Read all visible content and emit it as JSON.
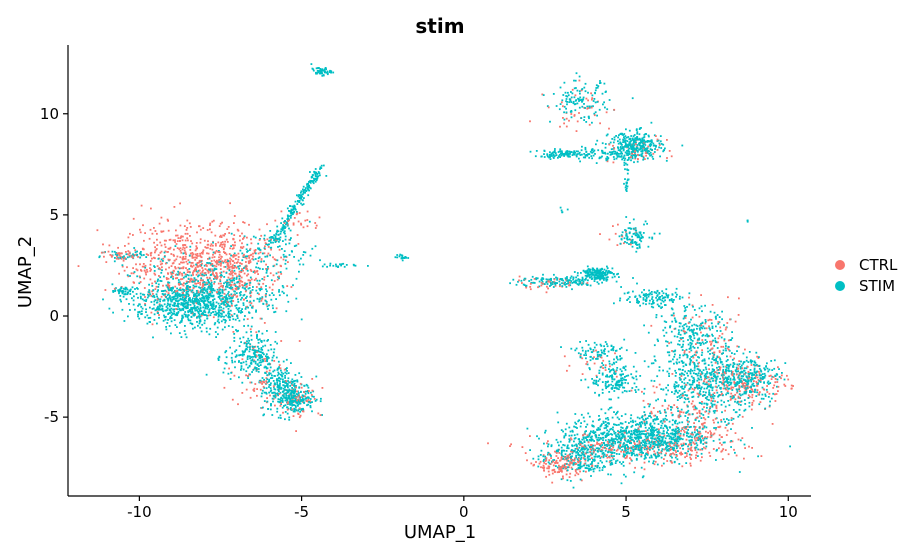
{
  "chart_data": {
    "type": "scatter",
    "title": "stim",
    "xlabel": "UMAP_1",
    "ylabel": "UMAP_2",
    "xlim": [
      -12.2,
      10.7
    ],
    "ylim": [
      -8.9,
      13.4
    ],
    "xticks": [
      -10,
      -5,
      0,
      5,
      10
    ],
    "yticks": [
      -5,
      0,
      5,
      10
    ],
    "xtick_labels": [
      "-10",
      "-5",
      "0",
      "5",
      "10"
    ],
    "ytick_labels": [
      "-5",
      "0",
      "5",
      "10"
    ],
    "legend": {
      "position": "right",
      "entries": [
        {
          "name": "CTRL",
          "color": "#F8766D"
        },
        {
          "name": "STIM",
          "color": "#00BFC4"
        }
      ]
    },
    "series": [
      {
        "name": "CTRL",
        "color": "#F8766D",
        "clusters": [
          {
            "center": [
              -8.3,
              2.6
            ],
            "sd": [
              1.1,
              1.0
            ],
            "n": 650
          },
          {
            "center": [
              -6.9,
              2.2
            ],
            "sd": [
              0.6,
              0.9
            ],
            "n": 180
          },
          {
            "center": [
              -10.4,
              3.0
            ],
            "sd": [
              0.4,
              0.15
            ],
            "n": 40
          },
          {
            "center": [
              -5.2,
              -4.0
            ],
            "sd": [
              0.4,
              0.5
            ],
            "n": 70
          },
          {
            "center": [
              -6.3,
              -2.8
            ],
            "sd": [
              0.5,
              0.9
            ],
            "n": 60
          },
          {
            "center": [
              -5.0,
              4.7
            ],
            "sd": [
              0.3,
              0.3
            ],
            "n": 25
          },
          {
            "center": [
              3.0,
              -7.4
            ],
            "sd": [
              0.35,
              0.3
            ],
            "n": 130
          },
          {
            "center": [
              5.5,
              -6.6
            ],
            "sd": [
              1.6,
              0.4
            ],
            "n": 260
          },
          {
            "center": [
              7.2,
              -5.6
            ],
            "sd": [
              0.6,
              0.7
            ],
            "n": 90
          },
          {
            "center": [
              8.8,
              -3.3
            ],
            "sd": [
              0.6,
              0.5
            ],
            "n": 150
          },
          {
            "center": [
              7.6,
              -1.8
            ],
            "sd": [
              0.6,
              1.1
            ],
            "n": 110
          },
          {
            "center": [
              3.6,
              10.2
            ],
            "sd": [
              0.5,
              0.6
            ],
            "n": 40
          },
          {
            "center": [
              5.3,
              8.2
            ],
            "sd": [
              0.5,
              0.3
            ],
            "n": 40
          },
          {
            "center": [
              2.5,
              1.6
            ],
            "sd": [
              0.7,
              0.15
            ],
            "n": 35
          },
          {
            "center": [
              4.9,
              4.0
            ],
            "sd": [
              0.3,
              0.3
            ],
            "n": 15
          },
          {
            "center": [
              4.2,
              -2.2
            ],
            "sd": [
              0.4,
              0.4
            ],
            "n": 25
          },
          {
            "center": [
              6.8,
              -4.4
            ],
            "sd": [
              1.0,
              0.8
            ],
            "n": 80
          }
        ]
      },
      {
        "name": "STIM",
        "color": "#00BFC4",
        "clusters": [
          {
            "center": [
              -8.4,
              0.6
            ],
            "sd": [
              0.9,
              0.6
            ],
            "n": 700
          },
          {
            "center": [
              -7.6,
              1.4
            ],
            "sd": [
              1.1,
              0.9
            ],
            "n": 420
          },
          {
            "center": [
              -10.5,
              1.2
            ],
            "sd": [
              0.2,
              0.1
            ],
            "n": 40
          },
          {
            "center": [
              -10.4,
              3.0
            ],
            "sd": [
              0.4,
              0.15
            ],
            "n": 40
          },
          {
            "center": [
              -6.6,
              -2.0
            ],
            "sd": [
              0.4,
              0.6
            ],
            "n": 180
          },
          {
            "center": [
              -5.5,
              -3.6
            ],
            "sd": [
              0.4,
              0.6
            ],
            "n": 220
          },
          {
            "center": [
              -5.2,
              -4.2
            ],
            "sd": [
              0.3,
              0.3
            ],
            "n": 120
          },
          {
            "center": [
              -5.7,
              3.3
            ],
            "sd": [
              0.6,
              0.5
            ],
            "n": 80
          },
          {
            "center": [
              -4.4,
              12.1
            ],
            "sd": [
              0.15,
              0.1
            ],
            "n": 50
          },
          {
            "center": [
              -1.9,
              2.9
            ],
            "sd": [
              0.1,
              0.06
            ],
            "n": 20
          },
          {
            "center": [
              -3.8,
              2.5
            ],
            "sd": [
              0.3,
              0.05
            ],
            "n": 20
          },
          {
            "center": [
              3.5,
              -7.0
            ],
            "sd": [
              0.6,
              0.5
            ],
            "n": 220
          },
          {
            "center": [
              4.9,
              -6.1
            ],
            "sd": [
              1.0,
              0.6
            ],
            "n": 600
          },
          {
            "center": [
              6.2,
              -5.9
            ],
            "sd": [
              0.9,
              0.6
            ],
            "n": 400
          },
          {
            "center": [
              7.6,
              -3.3
            ],
            "sd": [
              0.8,
              0.8
            ],
            "n": 500
          },
          {
            "center": [
              8.7,
              -3.0
            ],
            "sd": [
              0.5,
              0.5
            ],
            "n": 200
          },
          {
            "center": [
              7.0,
              -1.0
            ],
            "sd": [
              0.6,
              0.7
            ],
            "n": 240
          },
          {
            "center": [
              5.9,
              0.9
            ],
            "sd": [
              0.5,
              0.25
            ],
            "n": 120
          },
          {
            "center": [
              4.7,
              -3.2
            ],
            "sd": [
              0.4,
              0.4
            ],
            "n": 150
          },
          {
            "center": [
              4.2,
              -1.8
            ],
            "sd": [
              0.4,
              0.3
            ],
            "n": 90
          },
          {
            "center": [
              3.6,
              10.6
            ],
            "sd": [
              0.45,
              0.5
            ],
            "n": 120
          },
          {
            "center": [
              5.3,
              8.4
            ],
            "sd": [
              0.4,
              0.35
            ],
            "n": 320
          },
          {
            "center": [
              4.3,
              8.0
            ],
            "sd": [
              0.6,
              0.15
            ],
            "n": 90
          },
          {
            "center": [
              3.0,
              8.0
            ],
            "sd": [
              0.4,
              0.1
            ],
            "n": 90
          },
          {
            "center": [
              4.1,
              2.1
            ],
            "sd": [
              0.25,
              0.15
            ],
            "n": 180
          },
          {
            "center": [
              2.9,
              1.7
            ],
            "sd": [
              0.7,
              0.15
            ],
            "n": 130
          },
          {
            "center": [
              5.4,
              4.0
            ],
            "sd": [
              0.25,
              0.3
            ],
            "n": 60
          },
          {
            "center": [
              3.1,
              5.2
            ],
            "sd": [
              0.05,
              0.05
            ],
            "n": 5
          },
          {
            "center": [
              8.7,
              4.7
            ],
            "sd": [
              0.03,
              0.03
            ],
            "n": 3
          }
        ],
        "trails": [
          {
            "from": [
              -5.9,
              3.6
            ],
            "to": [
              -4.4,
              7.4
            ],
            "n": 200,
            "spread": 0.15
          },
          {
            "from": [
              -6.5,
              -1.5
            ],
            "to": [
              -5.2,
              -4.4
            ],
            "n": 100,
            "spread": 0.35
          },
          {
            "from": [
              4.9,
              3.9
            ],
            "to": [
              5.4,
              3.4
            ],
            "n": 30,
            "spread": 0.15
          },
          {
            "from": [
              5.0,
              7.6
            ],
            "to": [
              5.0,
              6.2
            ],
            "n": 25,
            "spread": 0.08
          }
        ]
      }
    ]
  }
}
